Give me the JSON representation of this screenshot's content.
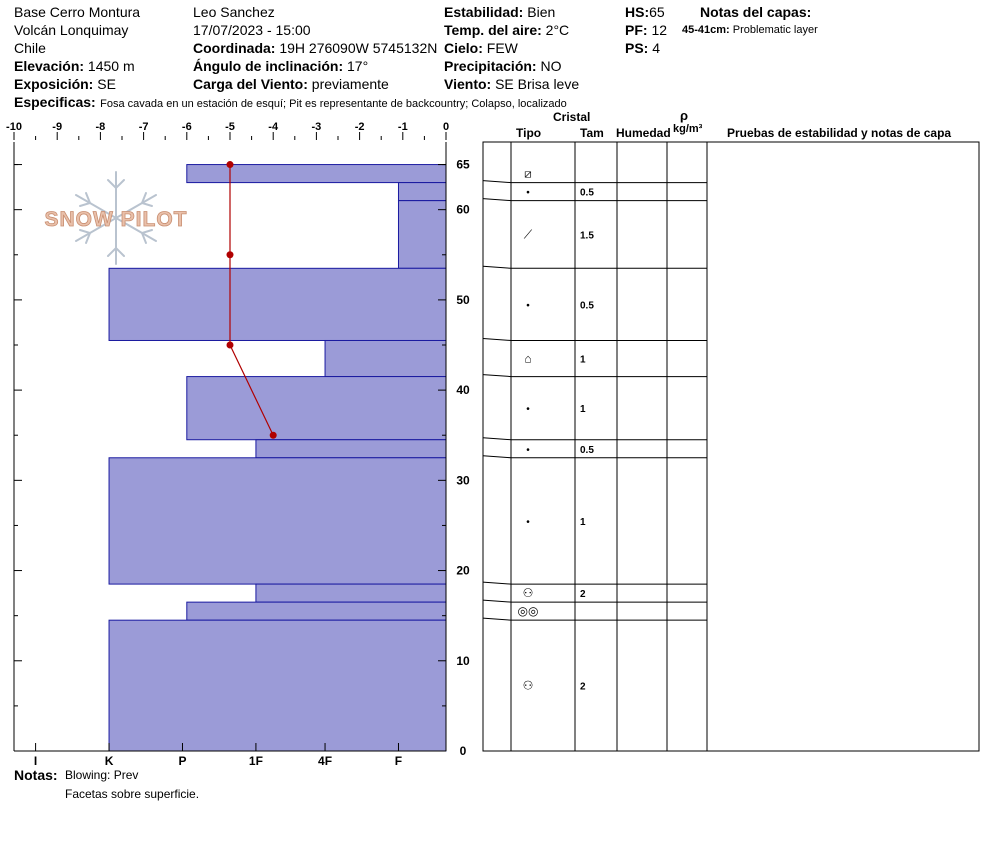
{
  "header": {
    "location_lines": [
      "Base Cerro Montura",
      "Volcán Lonquimay",
      "Chile"
    ],
    "observer": "Leo Sanchez",
    "datetime": "17/07/2023 - 15:00",
    "coordinate_label": "Coordinada:",
    "coordinate_value": "19H 276090W 5745132N",
    "elevation_label": "Elevación:",
    "elevation_value": "1450 m",
    "exposure_label": "Exposición:",
    "exposure_value": "SE",
    "slope_label": "Ángulo de inclinación:",
    "slope_value": "17°",
    "wind_load_label": "Carga del Viento:",
    "wind_load_value": "previamente",
    "stability_label": "Estabilidad:",
    "stability_value": "Bien",
    "air_temp_label": "Temp. del aire:",
    "air_temp_value": "2°C",
    "sky_label": "Cielo:",
    "sky_value": "FEW",
    "precip_label": "Precipitación:",
    "precip_value": "NO",
    "wind_label": "Viento:",
    "wind_value": "SE  Brisa leve",
    "hs_label": "HS:",
    "hs_value": "65",
    "pf_label": "PF:",
    "pf_value": "12",
    "ps_label": "PS:",
    "ps_value": "4",
    "layer_notes_title": "Notas del capas:",
    "layer_note_range": "45-41cm:",
    "layer_note_text": "Problematic layer",
    "specifics_label": "Especificas:",
    "specifics_value": "Fosa cavada en un estación de esquí; Pit es representante de backcountry; Colapso, localizado"
  },
  "logo": {
    "text": "SNOW PILOT"
  },
  "table": {
    "header_cristal": "Cristal",
    "header_tipo": "Tipo",
    "header_tam": "Tam",
    "header_humedad": "Humedad",
    "header_rho": "ρ",
    "header_rho_unit": "kg/m³",
    "header_tests": "Pruebas de estabilidad y notas de capa"
  },
  "notes": {
    "label": "Notas:",
    "line1": "Blowing: Prev",
    "line2": "Facetas sobre superficie."
  },
  "colors": {
    "hardness_fill": "#9b9bd7",
    "hardness_stroke": "#1a1aa0",
    "temp_line": "#b00000"
  },
  "chart_data": {
    "type": "bar",
    "description_axes": "hardness profile vs depth with temperature overlay",
    "y_axis": {
      "ticks": [
        0,
        10,
        20,
        30,
        40,
        50,
        60,
        65
      ],
      "ylim": [
        0,
        67.5
      ]
    },
    "temp_axis": {
      "ticks": [
        -10,
        -9,
        -8,
        -7,
        -6,
        -5,
        -4,
        -3,
        -2,
        -1,
        0
      ],
      "xlim": [
        -10,
        0
      ]
    },
    "hardness_axis": {
      "ticks": [
        "I",
        "K",
        "P",
        "1F",
        "4F",
        "F"
      ]
    },
    "layers": [
      {
        "top": 65,
        "bottom": 63,
        "temp_equiv": -6.0,
        "grain": "⧄",
        "size": ""
      },
      {
        "top": 63,
        "bottom": 61,
        "temp_equiv": -1.1,
        "grain": "•",
        "size": "0.5"
      },
      {
        "top": 61,
        "bottom": 53.5,
        "temp_equiv": -1.1,
        "grain": "⟋",
        "size": "1.5"
      },
      {
        "top": 53.5,
        "bottom": 45.5,
        "temp_equiv": -7.8,
        "grain": "•",
        "size": "0.5"
      },
      {
        "top": 45.5,
        "bottom": 41.5,
        "temp_equiv": -2.8,
        "grain": "⌂",
        "size": "1"
      },
      {
        "top": 41.5,
        "bottom": 34.5,
        "temp_equiv": -6.0,
        "grain": "•",
        "size": "1"
      },
      {
        "top": 34.5,
        "bottom": 32.5,
        "temp_equiv": -4.4,
        "grain": "•",
        "size": "0.5"
      },
      {
        "top": 32.5,
        "bottom": 18.5,
        "temp_equiv": -7.8,
        "grain": "•",
        "size": "1"
      },
      {
        "top": 18.5,
        "bottom": 16.5,
        "temp_equiv": -4.4,
        "grain": "⚇",
        "size": "2"
      },
      {
        "top": 16.5,
        "bottom": 14.5,
        "temp_equiv": -6.0,
        "grain": "◎◎",
        "size": ""
      },
      {
        "top": 14.5,
        "bottom": 0,
        "temp_equiv": -7.8,
        "grain": "⚇",
        "size": "2"
      }
    ],
    "temperature": [
      {
        "depth": 65,
        "temp": -5
      },
      {
        "depth": 55,
        "temp": -5
      },
      {
        "depth": 45,
        "temp": -5
      },
      {
        "depth": 35,
        "temp": -4
      }
    ]
  }
}
